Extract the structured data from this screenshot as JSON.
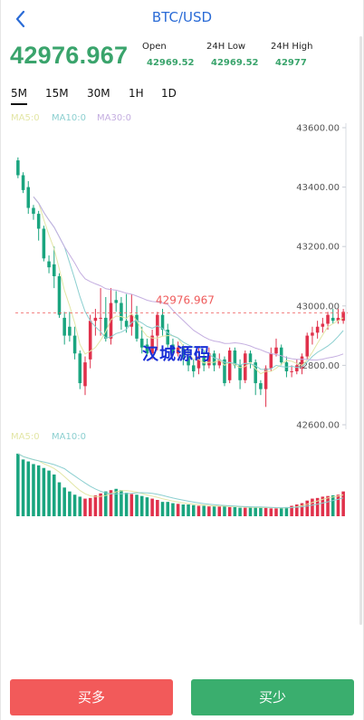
{
  "header": {
    "title": "BTC/USD"
  },
  "ticker": {
    "price": "42976.967",
    "open_label": "Open",
    "open_value": "42969.52",
    "low_label": "24H Low",
    "low_value": "42969.52",
    "high_label": "24H High",
    "high_value": "42977"
  },
  "periods": [
    {
      "label": "5M",
      "active": true
    },
    {
      "label": "15M",
      "active": false
    },
    {
      "label": "30M",
      "active": false
    },
    {
      "label": "1H",
      "active": false
    },
    {
      "label": "1D",
      "active": false
    }
  ],
  "indicators": {
    "price_legend": [
      {
        "text": "MA5:0",
        "color": "#e3e6a6"
      },
      {
        "text": "MA10:0",
        "color": "#8ccfd0"
      },
      {
        "text": "MA30:0",
        "color": "#c4aee0"
      }
    ],
    "volume_legend": [
      {
        "text": "MA5:0",
        "color": "#e3e6a6"
      },
      {
        "text": "MA10:0",
        "color": "#8ccfd0"
      }
    ]
  },
  "chart_data": {
    "type": "candlestick",
    "y_ticks": [
      "43600.00",
      "43400.00",
      "43200.00",
      "43000.00",
      "42800.00",
      "42600.00"
    ],
    "ylim": [
      42600,
      43600
    ],
    "last_price": 42976.967,
    "last_price_label": "42976.967",
    "colors": {
      "up": "#e0314b",
      "down": "#1aa57f",
      "last_price": "#ef5b5b"
    },
    "candles": [
      [
        43490,
        43440,
        43500,
        43430
      ],
      [
        43440,
        43390,
        43450,
        43380
      ],
      [
        43400,
        43330,
        43420,
        43310
      ],
      [
        43330,
        43310,
        43340,
        43290
      ],
      [
        43310,
        43260,
        43320,
        43220
      ],
      [
        43260,
        43160,
        43270,
        43150
      ],
      [
        43150,
        43130,
        43170,
        43110
      ],
      [
        43140,
        43100,
        43200,
        43060
      ],
      [
        43100,
        42970,
        43110,
        42960
      ],
      [
        42960,
        42900,
        42980,
        42870
      ],
      [
        42930,
        42900,
        42980,
        42880
      ],
      [
        42900,
        42840,
        42930,
        42820
      ],
      [
        42840,
        42740,
        42850,
        42720
      ],
      [
        42730,
        42810,
        42830,
        42700
      ],
      [
        42820,
        42950,
        42970,
        42790
      ],
      [
        42950,
        42960,
        42990,
        42900
      ],
      [
        42960,
        42960,
        43060,
        42900
      ],
      [
        42960,
        42890,
        43030,
        42880
      ],
      [
        42890,
        43010,
        43060,
        42870
      ],
      [
        43020,
        43010,
        43050,
        42980
      ],
      [
        43010,
        42950,
        43030,
        42920
      ],
      [
        42950,
        42930,
        43040,
        42910
      ],
      [
        42930,
        42970,
        43040,
        42900
      ],
      [
        42970,
        42890,
        43000,
        42880
      ],
      [
        42890,
        42860,
        42930,
        42840
      ],
      [
        42870,
        42840,
        42890,
        42830
      ],
      [
        42840,
        42900,
        42920,
        42820
      ],
      [
        42900,
        42970,
        42980,
        42850
      ],
      [
        42970,
        42920,
        42990,
        42900
      ],
      [
        42920,
        42870,
        42940,
        42860
      ],
      [
        42870,
        42840,
        42890,
        42830
      ],
      [
        42840,
        42860,
        42880,
        42830
      ],
      [
        42860,
        42830,
        42870,
        42800
      ],
      [
        42830,
        42800,
        42850,
        42780
      ],
      [
        42800,
        42780,
        42820,
        42760
      ],
      [
        42790,
        42830,
        42860,
        42770
      ],
      [
        42830,
        42800,
        42850,
        42780
      ],
      [
        42800,
        42840,
        42860,
        42790
      ],
      [
        42840,
        42800,
        42850,
        42780
      ],
      [
        42800,
        42820,
        42840,
        42790
      ],
      [
        42820,
        42740,
        42830,
        42730
      ],
      [
        42750,
        42850,
        42860,
        42740
      ],
      [
        42850,
        42800,
        42860,
        42790
      ],
      [
        42800,
        42750,
        42820,
        42720
      ],
      [
        42750,
        42840,
        42850,
        42740
      ],
      [
        42840,
        42810,
        42850,
        42790
      ],
      [
        42810,
        42740,
        42820,
        42700
      ],
      [
        42740,
        42720,
        42750,
        42700
      ],
      [
        42720,
        42790,
        42800,
        42660
      ],
      [
        42790,
        42840,
        42860,
        42780
      ],
      [
        42840,
        42860,
        42890,
        42830
      ],
      [
        42860,
        42810,
        42870,
        42800
      ],
      [
        42810,
        42780,
        42830,
        42760
      ],
      [
        42780,
        42780,
        42800,
        42760
      ],
      [
        42780,
        42800,
        42820,
        42770
      ],
      [
        42790,
        42830,
        42840,
        42770
      ],
      [
        42830,
        42900,
        42910,
        42820
      ],
      [
        42900,
        42910,
        42930,
        42870
      ],
      [
        42910,
        42930,
        42950,
        42890
      ],
      [
        42930,
        42940,
        42960,
        42910
      ],
      [
        42940,
        42970,
        42980,
        42920
      ],
      [
        42960,
        42950,
        42990,
        42940
      ],
      [
        42950,
        42960,
        42990,
        42940
      ],
      [
        42950,
        42980,
        42990,
        42940
      ]
    ],
    "volumes": [
      0.96,
      0.87,
      0.84,
      0.8,
      0.78,
      0.74,
      0.7,
      0.64,
      0.52,
      0.44,
      0.38,
      0.33,
      0.3,
      0.27,
      0.28,
      0.32,
      0.35,
      0.38,
      0.4,
      0.42,
      0.4,
      0.36,
      0.34,
      0.33,
      0.31,
      0.29,
      0.27,
      0.25,
      0.22,
      0.22,
      0.2,
      0.19,
      0.18,
      0.18,
      0.17,
      0.16,
      0.16,
      0.15,
      0.15,
      0.15,
      0.16,
      0.14,
      0.14,
      0.13,
      0.13,
      0.14,
      0.14,
      0.13,
      0.13,
      0.12,
      0.12,
      0.13,
      0.14,
      0.16,
      0.18,
      0.2,
      0.24,
      0.27,
      0.28,
      0.3,
      0.31,
      0.32,
      0.33,
      0.38
    ]
  },
  "watermark": "汉城源码",
  "actions": {
    "buy_long": "买多",
    "buy_short": "买少"
  }
}
